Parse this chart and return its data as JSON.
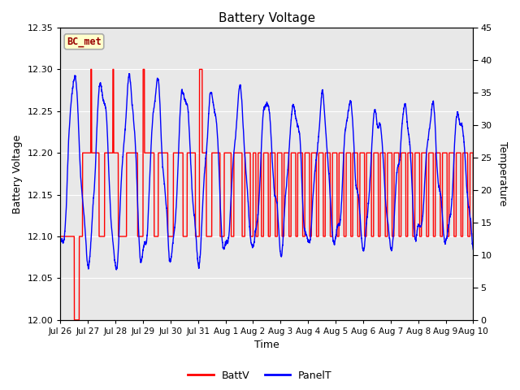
{
  "title": "Battery Voltage",
  "xlabel": "Time",
  "ylabel_left": "Battery Voltage",
  "ylabel_right": "Temperature",
  "ylim_left": [
    12.0,
    12.35
  ],
  "ylim_right": [
    0,
    45
  ],
  "yticks_left": [
    12.0,
    12.05,
    12.1,
    12.15,
    12.2,
    12.25,
    12.3,
    12.35
  ],
  "yticks_right": [
    0,
    5,
    10,
    15,
    20,
    25,
    30,
    35,
    40,
    45
  ],
  "figure_bg": "#ffffff",
  "plot_bg": "#e8e8e8",
  "annotation_text": "BC_met",
  "annotation_bg": "#ffffcc",
  "annotation_border": "#aaaaaa",
  "annotation_text_color": "#990000",
  "batt_color": "#ff0000",
  "panel_color": "#0000ff",
  "legend_batt": "BattV",
  "legend_panel": "PanelT",
  "tick_labels": [
    "Jul 26",
    "Jul 27",
    "Jul 28",
    "Jul 29",
    "Jul 30",
    "Jul 31",
    "Aug 1",
    "Aug 2",
    "Aug 3",
    "Aug 4",
    "Aug 5",
    "Aug 6",
    "Aug 7",
    "Aug 8",
    "Aug 9",
    "Aug 10"
  ],
  "tick_positions": [
    0,
    1,
    2,
    3,
    4,
    5,
    6,
    7,
    8,
    9,
    10,
    11,
    12,
    13,
    14,
    15
  ]
}
